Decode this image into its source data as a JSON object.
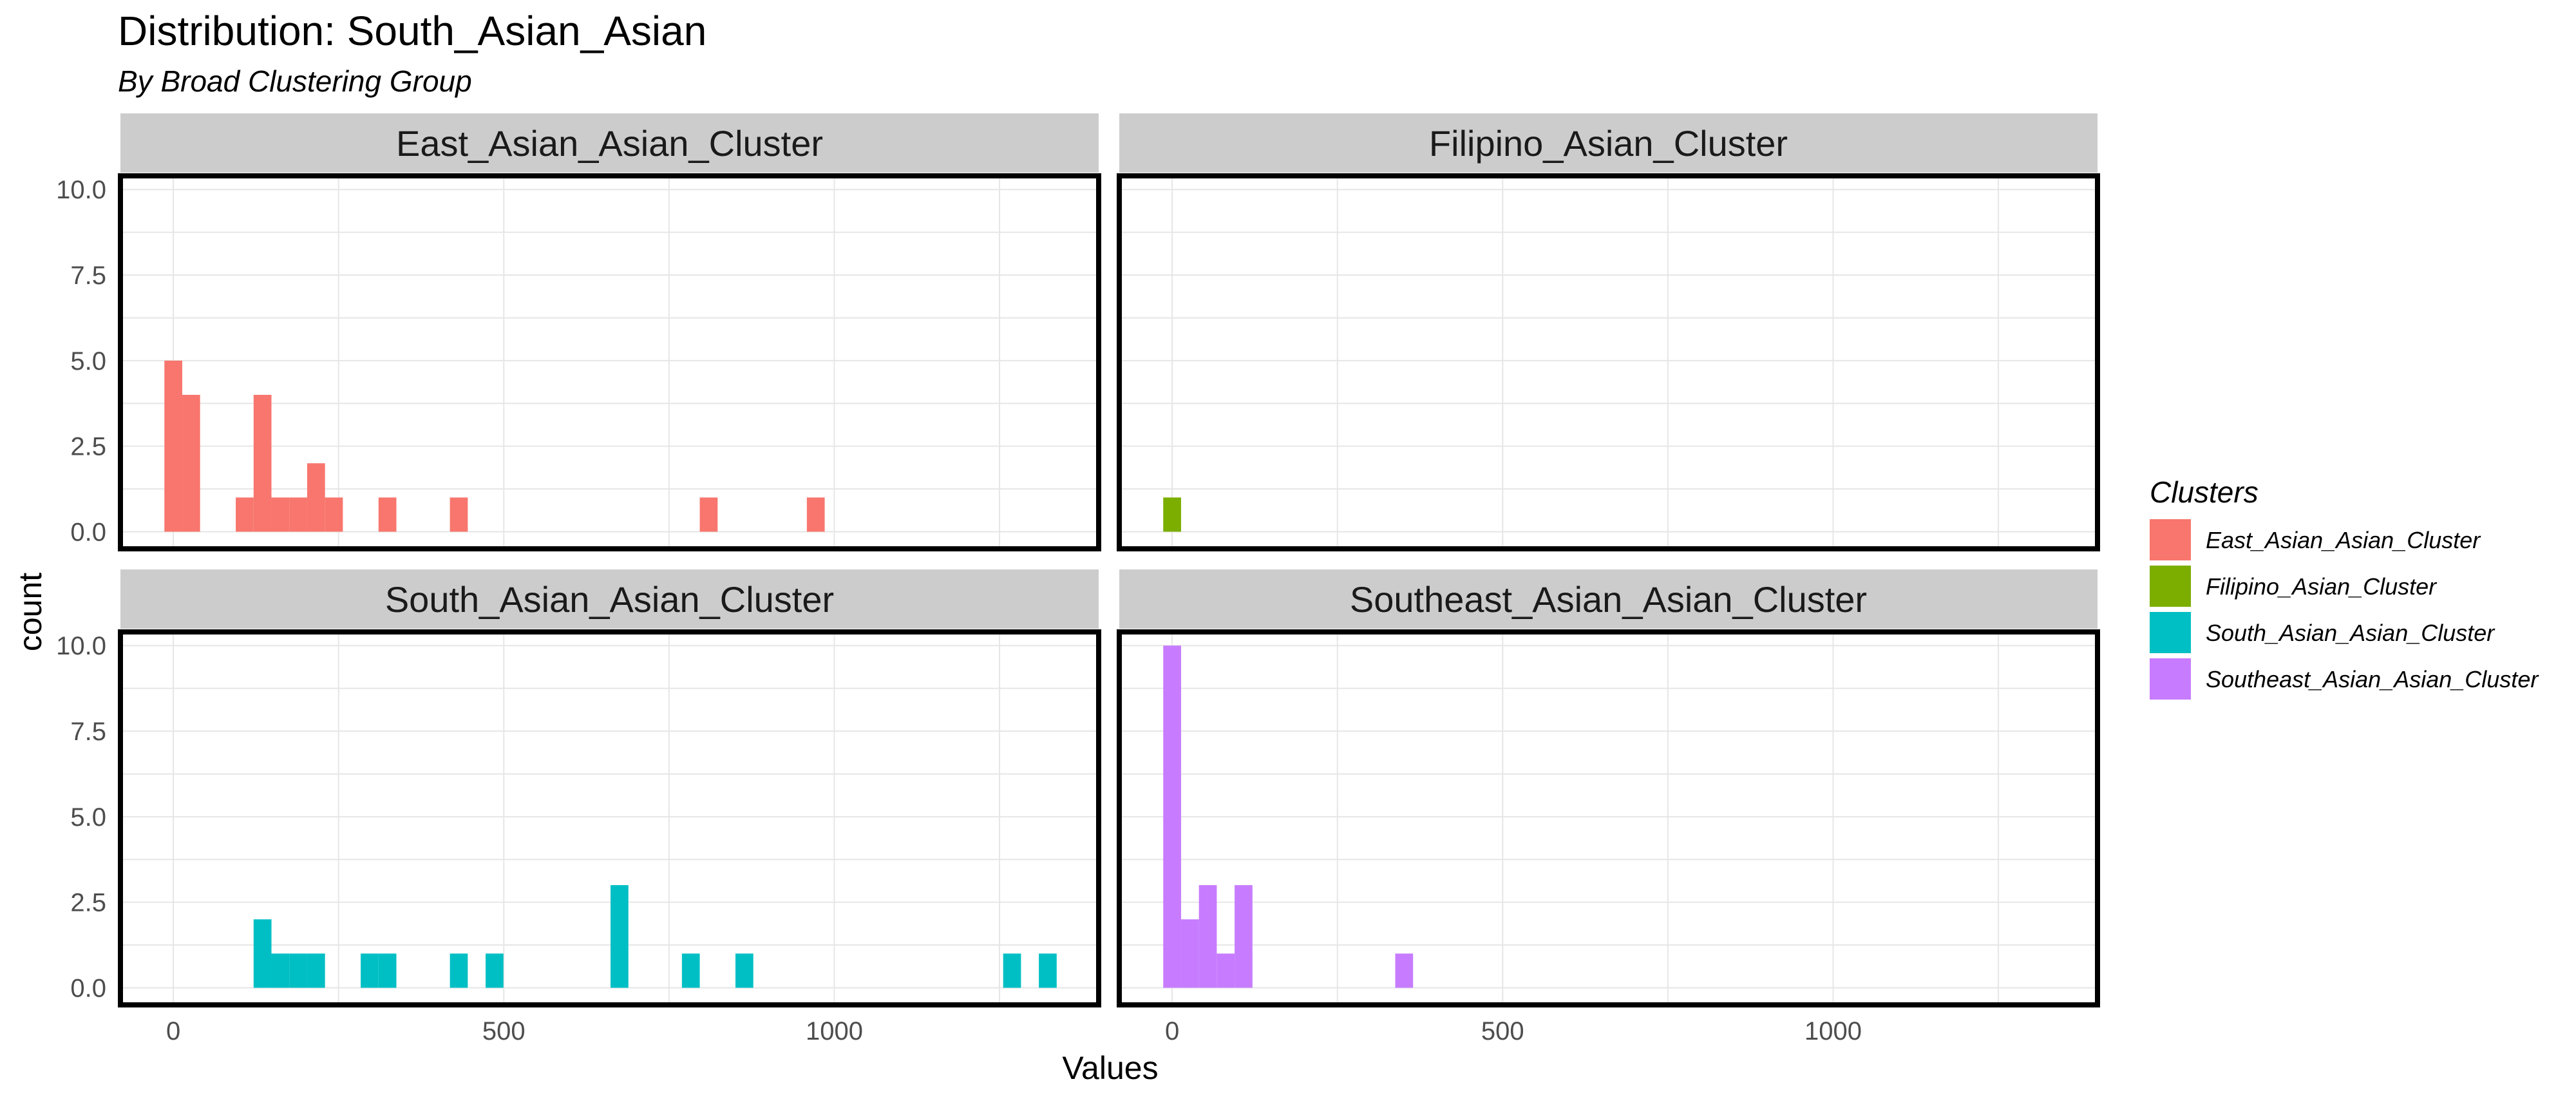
{
  "chart_data": {
    "type": "bar",
    "title": "Distribution: South_Asian_Asian",
    "subtitle": "By Broad Clustering Group",
    "xlabel": "Values",
    "ylabel": "count",
    "xlim": [
      -80,
      1400
    ],
    "ylim": [
      -0.5,
      10.4
    ],
    "x_ticks": [
      0,
      500,
      1000
    ],
    "x_tick_labels": [
      "0",
      "500",
      "1000"
    ],
    "y_ticks": [
      0,
      2.5,
      5,
      7.5,
      10
    ],
    "y_tick_labels": [
      "0.0",
      "2.5",
      "5.0",
      "7.5",
      "10.0"
    ],
    "bin_width": 27,
    "grid": true,
    "legend": {
      "title": "Clusters",
      "position": "right",
      "entries": [
        {
          "label": "East_Asian_Asian_Cluster",
          "color": "#F8766D"
        },
        {
          "label": "Filipino_Asian_Cluster",
          "color": "#7CAE00"
        },
        {
          "label": "South_Asian_Asian_Cluster",
          "color": "#00BFC4"
        },
        {
          "label": "Southeast_Asian_Asian_Cluster",
          "color": "#C77CFF"
        }
      ]
    },
    "panels": [
      {
        "name": "East_Asian_Asian_Cluster",
        "color": "#F8766D",
        "bins": [
          {
            "x": 0,
            "count": 5
          },
          {
            "x": 27,
            "count": 4
          },
          {
            "x": 108,
            "count": 1
          },
          {
            "x": 135,
            "count": 4
          },
          {
            "x": 162,
            "count": 1
          },
          {
            "x": 189,
            "count": 1
          },
          {
            "x": 216,
            "count": 2
          },
          {
            "x": 243,
            "count": 1
          },
          {
            "x": 324,
            "count": 1
          },
          {
            "x": 432,
            "count": 1
          },
          {
            "x": 810,
            "count": 1
          },
          {
            "x": 972,
            "count": 1
          }
        ]
      },
      {
        "name": "Filipino_Asian_Cluster",
        "color": "#7CAE00",
        "bins": [
          {
            "x": 0,
            "count": 1
          }
        ]
      },
      {
        "name": "South_Asian_Asian_Cluster",
        "color": "#00BFC4",
        "bins": [
          {
            "x": 135,
            "count": 2
          },
          {
            "x": 162,
            "count": 1
          },
          {
            "x": 189,
            "count": 1
          },
          {
            "x": 216,
            "count": 1
          },
          {
            "x": 297,
            "count": 1
          },
          {
            "x": 324,
            "count": 1
          },
          {
            "x": 432,
            "count": 1
          },
          {
            "x": 486,
            "count": 1
          },
          {
            "x": 675,
            "count": 3
          },
          {
            "x": 783,
            "count": 1
          },
          {
            "x": 864,
            "count": 1
          },
          {
            "x": 1269,
            "count": 1
          },
          {
            "x": 1323,
            "count": 1
          }
        ]
      },
      {
        "name": "Southeast_Asian_Asian_Cluster",
        "color": "#C77CFF",
        "bins": [
          {
            "x": 0,
            "count": 10
          },
          {
            "x": 27,
            "count": 2
          },
          {
            "x": 54,
            "count": 3
          },
          {
            "x": 81,
            "count": 1
          },
          {
            "x": 108,
            "count": 3
          },
          {
            "x": 351,
            "count": 1
          }
        ]
      }
    ]
  }
}
